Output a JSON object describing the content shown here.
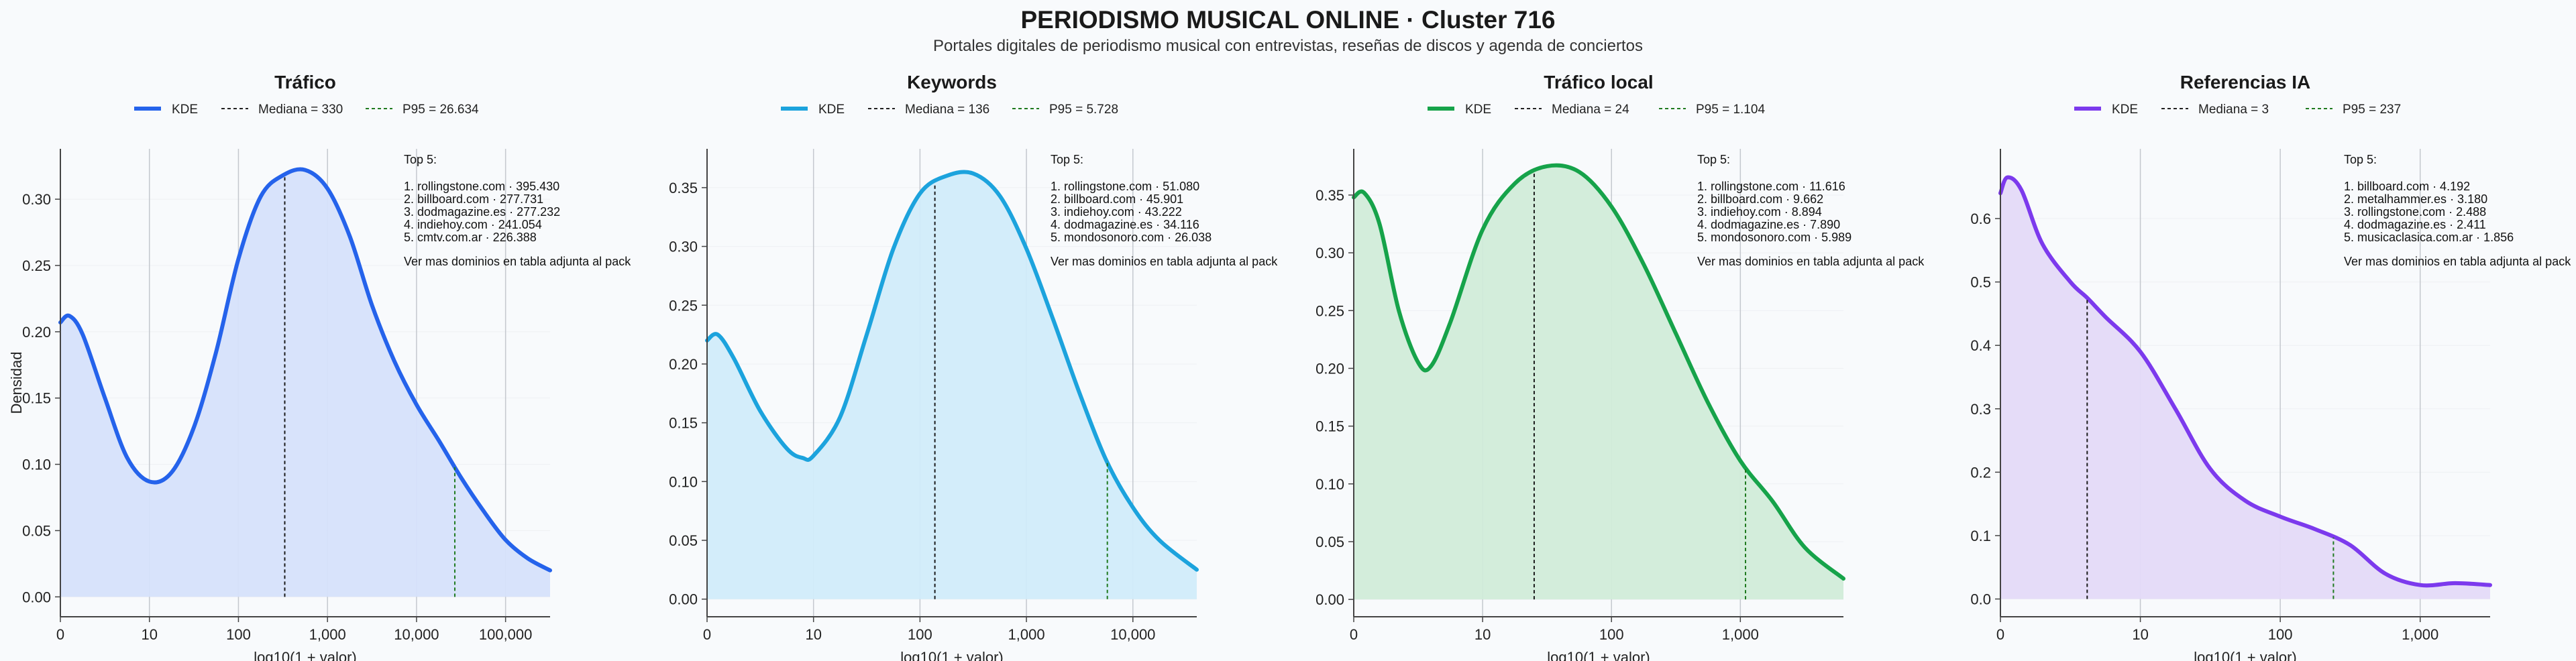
{
  "header": {
    "title": "PERIODISMO MUSICAL ONLINE · Cluster 716",
    "subtitle": "Portales digitales de periodismo musical con entrevistas, reseñas de discos y agenda de conciertos"
  },
  "chart_data": [
    {
      "type": "area",
      "title": "Tráfico",
      "xlabel": "log10(1 + valor)",
      "ylabel": "Densidad",
      "color": "#2563eb",
      "fill": "#d6e2fb",
      "x_ticks": [
        "0",
        "10",
        "100",
        "1,000",
        "10,000",
        "100,000"
      ],
      "x_tick_positions": [
        0,
        1,
        2,
        3,
        4,
        5
      ],
      "xlim": [
        0,
        5.5
      ],
      "y_ticks": [
        "0.00",
        "0.05",
        "0.10",
        "0.15",
        "0.20",
        "0.25",
        "0.30"
      ],
      "ylim": [
        -0.015,
        0.338
      ],
      "legend": {
        "kde": "KDE",
        "median": "Mediana = 330",
        "p95": "P95 = 26.634"
      },
      "median_log": 2.52,
      "p95_log": 4.43,
      "series": [
        {
          "name": "KDE",
          "x": [
            0,
            0.1,
            0.25,
            0.5,
            0.75,
            1.0,
            1.25,
            1.5,
            1.75,
            2.0,
            2.25,
            2.5,
            2.75,
            3.0,
            3.25,
            3.5,
            3.75,
            4.0,
            4.25,
            4.5,
            4.75,
            5.0,
            5.25,
            5.5
          ],
          "y": [
            0.207,
            0.212,
            0.198,
            0.15,
            0.105,
            0.087,
            0.094,
            0.128,
            0.185,
            0.255,
            0.302,
            0.318,
            0.322,
            0.308,
            0.272,
            0.22,
            0.178,
            0.145,
            0.118,
            0.09,
            0.065,
            0.043,
            0.029,
            0.02
          ]
        }
      ],
      "top5": {
        "heading": "Top 5:",
        "items": [
          "1. rollingstone.com · 395.430",
          "2. billboard.com · 277.731",
          "3. dodmagazine.es · 277.232",
          "4. indiehoy.com · 241.054",
          "5. cmtv.com.ar · 226.388"
        ],
        "footer": "Ver mas dominios en tabla adjunta al pack"
      }
    },
    {
      "type": "area",
      "title": "Keywords",
      "xlabel": "log10(1 + valor)",
      "ylabel": "",
      "color": "#1ca3dd",
      "fill": "#d1ecfa",
      "x_ticks": [
        "0",
        "10",
        "100",
        "1,000",
        "10,000"
      ],
      "x_tick_positions": [
        0,
        1,
        2,
        3,
        4
      ],
      "xlim": [
        0,
        4.6
      ],
      "y_ticks": [
        "0.00",
        "0.05",
        "0.10",
        "0.15",
        "0.20",
        "0.25",
        "0.30",
        "0.35"
      ],
      "ylim": [
        -0.015,
        0.383
      ],
      "legend": {
        "kde": "KDE",
        "median": "Mediana = 136",
        "p95": "P95 = 5.728"
      },
      "median_log": 2.14,
      "p95_log": 3.76,
      "series": [
        {
          "name": "KDE",
          "x": [
            0,
            0.1,
            0.25,
            0.5,
            0.75,
            0.9,
            1.0,
            1.25,
            1.5,
            1.75,
            2.0,
            2.25,
            2.5,
            2.75,
            3.0,
            3.25,
            3.5,
            3.75,
            4.0,
            4.25,
            4.6
          ],
          "y": [
            0.22,
            0.225,
            0.205,
            0.16,
            0.128,
            0.12,
            0.122,
            0.155,
            0.225,
            0.298,
            0.345,
            0.36,
            0.362,
            0.343,
            0.298,
            0.238,
            0.175,
            0.118,
            0.078,
            0.05,
            0.025
          ]
        }
      ],
      "top5": {
        "heading": "Top 5:",
        "items": [
          "1. rollingstone.com · 51.080",
          "2. billboard.com · 45.901",
          "3. indiehoy.com · 43.222",
          "4. dodmagazine.es · 34.116",
          "5. mondosonoro.com · 26.038"
        ],
        "footer": "Ver mas dominios en tabla adjunta al pack"
      }
    },
    {
      "type": "area",
      "title": "Tráfico local",
      "xlabel": "log10(1 + valor)",
      "ylabel": "",
      "color": "#16a34a",
      "fill": "#d1ecd9",
      "x_ticks": [
        "0",
        "10",
        "100",
        "1,000"
      ],
      "x_tick_positions": [
        0,
        1,
        2,
        3
      ],
      "xlim": [
        0,
        3.8
      ],
      "y_ticks": [
        "0.00",
        "0.05",
        "0.10",
        "0.15",
        "0.20",
        "0.25",
        "0.30",
        "0.35"
      ],
      "ylim": [
        -0.015,
        0.39
      ],
      "legend": {
        "kde": "KDE",
        "median": "Mediana = 24",
        "p95": "P95 = 1.104"
      },
      "median_log": 1.4,
      "p95_log": 3.04,
      "series": [
        {
          "name": "KDE",
          "x": [
            0,
            0.08,
            0.2,
            0.35,
            0.5,
            0.6,
            0.75,
            1.0,
            1.25,
            1.5,
            1.75,
            2.0,
            2.25,
            2.5,
            2.75,
            3.0,
            3.25,
            3.5,
            3.8
          ],
          "y": [
            0.348,
            0.352,
            0.325,
            0.25,
            0.205,
            0.202,
            0.24,
            0.32,
            0.36,
            0.375,
            0.37,
            0.34,
            0.29,
            0.23,
            0.17,
            0.12,
            0.085,
            0.045,
            0.018
          ]
        }
      ],
      "top5": {
        "heading": "Top 5:",
        "items": [
          "1. rollingstone.com · 11.616",
          "2. billboard.com · 9.662",
          "3. indiehoy.com · 8.894",
          "4. dodmagazine.es · 7.890",
          "5. mondosonoro.com · 5.989"
        ],
        "footer": "Ver mas dominios en tabla adjunta al pack"
      }
    },
    {
      "type": "area",
      "title": "Referencias IA",
      "xlabel": "log10(1 + valor)",
      "ylabel": "",
      "color": "#7c3aed",
      "fill": "#e4daf8",
      "x_ticks": [
        "0",
        "10",
        "100",
        "1,000"
      ],
      "x_tick_positions": [
        0,
        1,
        2,
        3
      ],
      "xlim": [
        0,
        3.5
      ],
      "y_ticks": [
        "0.0",
        "0.1",
        "0.2",
        "0.3",
        "0.4",
        "0.5",
        "0.6"
      ],
      "ylim": [
        -0.028,
        0.71
      ],
      "legend": {
        "kde": "KDE",
        "median": "Mediana = 3",
        "p95": "P95 = 237"
      },
      "median_log": 0.62,
      "p95_log": 2.38,
      "series": [
        {
          "name": "KDE",
          "x": [
            0,
            0.05,
            0.15,
            0.3,
            0.5,
            0.62,
            0.75,
            1.0,
            1.25,
            1.5,
            1.75,
            2.0,
            2.25,
            2.5,
            2.75,
            3.0,
            3.25,
            3.5
          ],
          "y": [
            0.64,
            0.665,
            0.645,
            0.56,
            0.5,
            0.475,
            0.445,
            0.39,
            0.3,
            0.205,
            0.155,
            0.13,
            0.11,
            0.085,
            0.04,
            0.022,
            0.025,
            0.022
          ]
        }
      ],
      "top5": {
        "heading": "Top 5:",
        "items": [
          "1. billboard.com · 4.192",
          "2. metalhammer.es · 3.180",
          "3. rollingstone.com · 2.488",
          "4. dodmagazine.es · 2.411",
          "5. musicaclasica.com.ar · 1.856"
        ],
        "footer": "Ver mas dominios en tabla adjunta al pack"
      }
    }
  ]
}
